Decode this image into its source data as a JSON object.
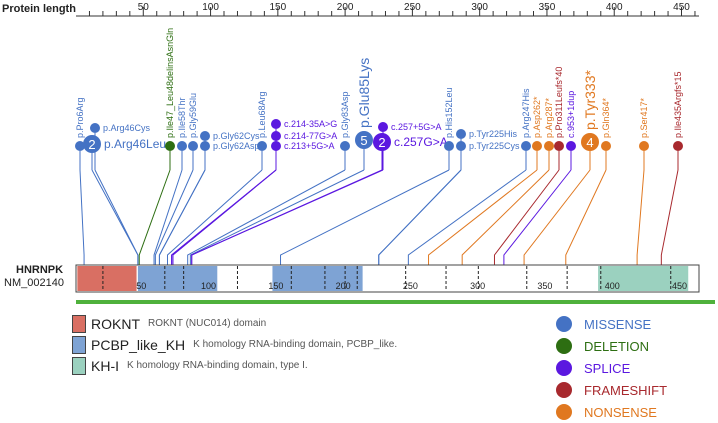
{
  "title": "Protein length",
  "gene": {
    "name": "HNRNPK",
    "transcript": "NM_002140"
  },
  "protein_length": 463,
  "axis_ticks": [
    50,
    100,
    150,
    200,
    250,
    300,
    350,
    400,
    450
  ],
  "domain_ticks": [
    50,
    100,
    150,
    200,
    250,
    300,
    350,
    400,
    450
  ],
  "colors": {
    "missense": "#4472c4",
    "deletion": "#2d6e12",
    "splice": "#5b18e0",
    "frameshift": "#a8292e",
    "nonsense": "#e07820",
    "baseline": "#4fb13c"
  },
  "domains": [
    {
      "name": "ROKNT",
      "start": 1,
      "end": 45,
      "color": "#d96f63",
      "description": "ROKNT (NUC014) domain"
    },
    {
      "name": "PCBP_like_KH",
      "start": 46,
      "end": 105,
      "color": "#7ea3d4",
      "description": "K homology RNA-binding domain, PCBP_like."
    },
    {
      "name": "PCBP_like_KH",
      "start": 146,
      "end": 213,
      "color": "#7ea3d4",
      "description": "K homology RNA-binding domain, PCBP_like."
    },
    {
      "name": "KH-I",
      "start": 388,
      "end": 455,
      "color": "#9bd1bf",
      "description": "K homology RNA-binding domain, type I."
    }
  ],
  "variants": [
    {
      "label": "p.Pro6Arg",
      "pos": 6,
      "type": "missense",
      "size": "small",
      "count": 1
    },
    {
      "label": "p.Arg46Leu",
      "pos": 46,
      "type": "missense",
      "size": "big",
      "count": 2
    },
    {
      "label": "p.Arg46Cys",
      "pos": 46,
      "type": "missense",
      "size": "small",
      "count": 1
    },
    {
      "label": "p.Ile47_Leu48delinsAsnGln",
      "pos": 47,
      "type": "deletion",
      "size": "small",
      "count": 1
    },
    {
      "label": "p.Ile58Thr",
      "pos": 58,
      "type": "missense",
      "size": "small",
      "count": 1
    },
    {
      "label": "p.Gly59Glu",
      "pos": 59,
      "type": "missense",
      "size": "small",
      "count": 1
    },
    {
      "label": "p.Gly62Cys",
      "pos": 62,
      "type": "missense",
      "size": "small",
      "count": 1
    },
    {
      "label": "p.Gly62Asp",
      "pos": 62,
      "type": "missense",
      "size": "small",
      "count": 1
    },
    {
      "label": "p.Leu68Arg",
      "pos": 68,
      "type": "missense",
      "size": "small",
      "count": 1
    },
    {
      "label": "c.214-35A>G",
      "pos": 72,
      "type": "splice",
      "size": "small",
      "count": 1
    },
    {
      "label": "c.214-77G>A",
      "pos": 72,
      "type": "splice",
      "size": "small",
      "count": 1
    },
    {
      "label": "c.213+5G>A",
      "pos": 71,
      "type": "splice",
      "size": "small",
      "count": 1
    },
    {
      "label": "p.Gly83Asp",
      "pos": 83,
      "type": "missense",
      "size": "small",
      "count": 1
    },
    {
      "label": "p.Glu85Lys",
      "pos": 85,
      "type": "missense",
      "size": "big",
      "count": 5
    },
    {
      "label": "c.257G>A",
      "pos": 86,
      "type": "splice",
      "size": "big",
      "count": 2
    },
    {
      "label": "c.257+5G>A",
      "pos": 86,
      "type": "splice",
      "size": "small",
      "count": 1
    },
    {
      "label": "p.His152Leu",
      "pos": 152,
      "type": "missense",
      "size": "small",
      "count": 1
    },
    {
      "label": "p.Tyr225His",
      "pos": 225,
      "type": "missense",
      "size": "small",
      "count": 1
    },
    {
      "label": "p.Tyr225Cys",
      "pos": 225,
      "type": "missense",
      "size": "small",
      "count": 1
    },
    {
      "label": "p.Arg247His",
      "pos": 247,
      "type": "missense",
      "size": "small",
      "count": 1
    },
    {
      "label": "p.Asp262*",
      "pos": 262,
      "type": "nonsense",
      "size": "small",
      "count": 1
    },
    {
      "label": "p.Arg287*",
      "pos": 287,
      "type": "nonsense",
      "size": "small",
      "count": 1
    },
    {
      "label": "p.Pro311Leufs*40",
      "pos": 311,
      "type": "frameshift",
      "size": "small",
      "count": 1
    },
    {
      "label": "c.953+1dup",
      "pos": 318,
      "type": "splice",
      "size": "small",
      "count": 1
    },
    {
      "label": "p.Tyr333*",
      "pos": 333,
      "type": "nonsense",
      "size": "big",
      "count": 4
    },
    {
      "label": "p.Gln364*",
      "pos": 364,
      "type": "nonsense",
      "size": "small",
      "count": 1
    },
    {
      "label": "p.Ser417*",
      "pos": 417,
      "type": "nonsense",
      "size": "small",
      "count": 1
    },
    {
      "label": "p.Ile435Argfs*15",
      "pos": 435,
      "type": "frameshift",
      "size": "small",
      "count": 1
    }
  ],
  "legend_domains": [
    {
      "name": "ROKNT",
      "description": "ROKNT (NUC014) domain",
      "color": "#d96f63"
    },
    {
      "name": "PCBP_like_KH",
      "description": "K homology RNA-binding domain, PCBP_like.",
      "color": "#7ea3d4"
    },
    {
      "name": "KH-I",
      "description": "K homology RNA-binding domain, type I.",
      "color": "#9bd1bf"
    }
  ],
  "legend_types": [
    {
      "name": "MISSENSE",
      "color": "#4472c4"
    },
    {
      "name": "DELETION",
      "color": "#2d6e12"
    },
    {
      "name": "SPLICE",
      "color": "#5b18e0"
    },
    {
      "name": "FRAMESHIFT",
      "color": "#a8292e"
    },
    {
      "name": "NONSENSE",
      "color": "#e07820"
    }
  ]
}
